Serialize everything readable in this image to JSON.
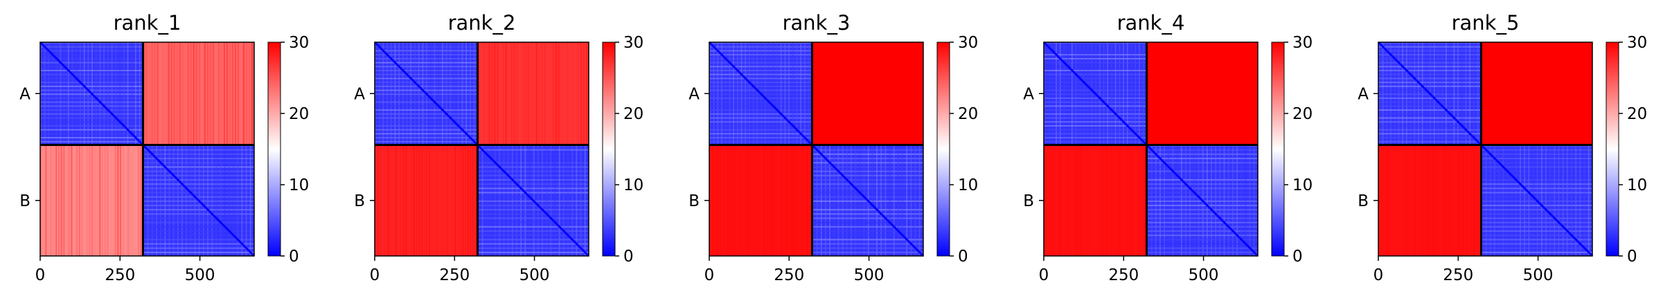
{
  "chart_data": {
    "type": "heatmap",
    "colorbar": {
      "range": [
        0,
        30
      ],
      "ticks": [
        "0",
        "10",
        "20",
        "30"
      ],
      "colors": {
        "low": "#0000ff",
        "mid": "#ffffff",
        "high": "#ff0000"
      }
    },
    "x_range": [
      0,
      670
    ],
    "x_ticks": [
      "0",
      "250",
      "500"
    ],
    "x_tick_values": [
      0,
      250,
      500
    ],
    "row_labels": [
      "A",
      "B"
    ],
    "chain_break": 322,
    "panels": [
      {
        "title": "rank_1",
        "inter_chain_level": 24,
        "inter_chain_b_level": 22
      },
      {
        "title": "rank_2",
        "inter_chain_level": 27,
        "inter_chain_b_level": 28
      },
      {
        "title": "rank_3",
        "inter_chain_level": 30,
        "inter_chain_b_level": 29
      },
      {
        "title": "rank_4",
        "inter_chain_level": 30,
        "inter_chain_b_level": 29
      },
      {
        "title": "rank_5",
        "inter_chain_level": 30,
        "inter_chain_b_level": 29
      }
    ]
  }
}
